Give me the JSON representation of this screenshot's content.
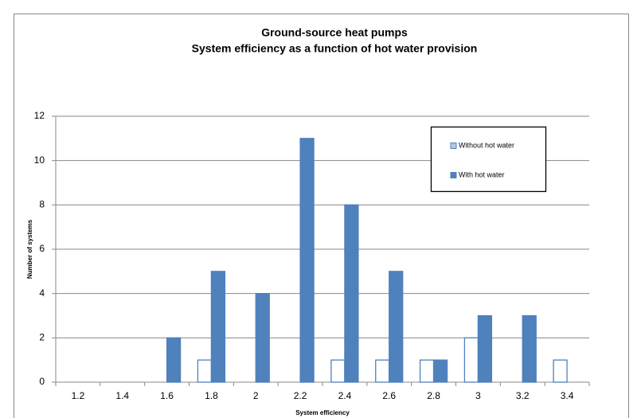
{
  "chart_data": {
    "type": "bar",
    "title": "Ground-source heat pumps",
    "subtitle": "System efficiency as a function of hot water provision",
    "y_label": "Number of systems",
    "x_label": "System efficiency",
    "categories": [
      "1.2",
      "1.4",
      "1.6",
      "1.8",
      "2",
      "2.2",
      "2.4",
      "2.6",
      "2.8",
      "3",
      "3.2",
      "3.4"
    ],
    "series": [
      {
        "name": "Without hot water",
        "color": "#4f81bd",
        "fill": "#ffffff",
        "values": [
          0,
          0,
          0,
          1,
          0,
          0,
          1,
          1,
          1,
          2,
          0,
          1
        ]
      },
      {
        "name": "With hot water",
        "color": "#4f81bd",
        "fill": "#4f81bd",
        "values": [
          0,
          0,
          2,
          5,
          4,
          11,
          8,
          5,
          1,
          3,
          3,
          0
        ]
      }
    ],
    "ylim": [
      0,
      12
    ],
    "yticks": [
      0,
      2,
      4,
      6,
      8,
      10,
      12
    ],
    "grid": true,
    "legend": "upper right"
  }
}
